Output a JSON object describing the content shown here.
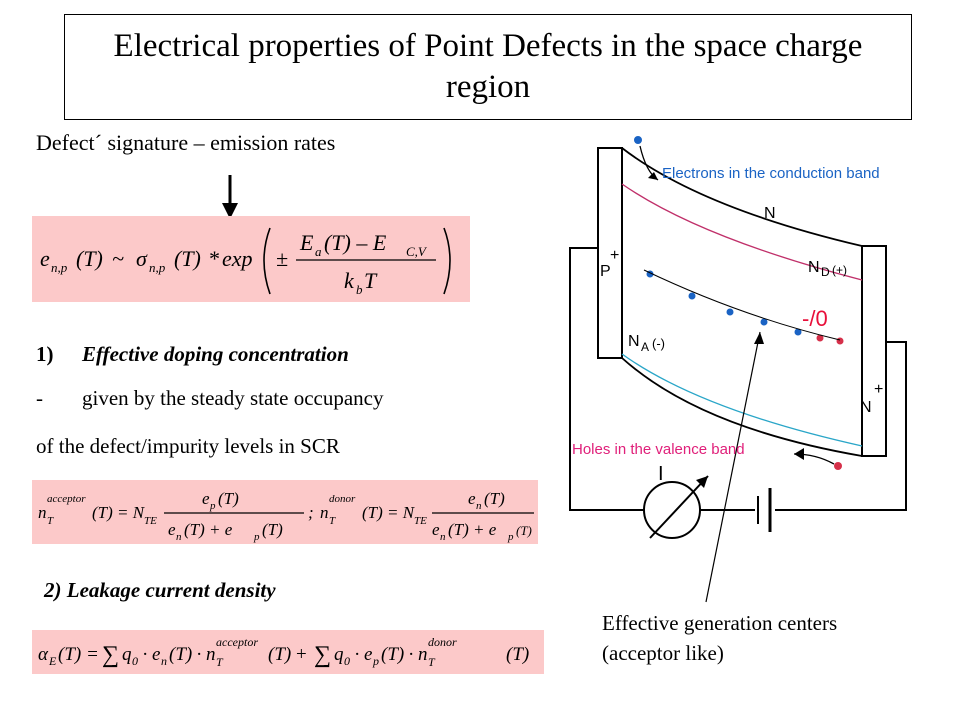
{
  "title": "Electrical properties of Point Defects in the space charge region",
  "subtitle": "Defect´ signature –  emission rates",
  "formula1": {
    "lhs": "e",
    "lhs_sub": "n,p",
    "lhs_arg": "(T)",
    "approx": "~",
    "sigma": "σ",
    "sigma_sub": "n,p",
    "sigma_arg": "(T)",
    "times": "*",
    "exp": "exp",
    "pm": "±",
    "num_E": "E",
    "num_E_sub": "a",
    "num_mid": "(T) – E",
    "num_sub2": "C,V",
    "den_k": "k",
    "den_sub": "b",
    "den_T": "T"
  },
  "item1": {
    "number": "1)",
    "heading": "Effective doping concentration",
    "dash": "-",
    "line1": "given by the steady state occupancy",
    "line2": "of the defect/impurity levels in SCR"
  },
  "formula2": {
    "n_acc": "n",
    "acc_sup": "acceptor",
    "T_sub": "T",
    "arg": "(T) = N",
    "nte_sub": "TE",
    "num_acc": "e",
    "num_acc_sub": "p",
    "num_arg": "(T)",
    "den": "e",
    "den_n_sub": "n",
    "den_mid": "(T) + e",
    "den_p_sub": "p",
    "den_end": "(T)",
    "sep": ";",
    "n_don": "n",
    "don_sup": "donor",
    "num_don": "e",
    "num_don_sub": "n"
  },
  "item2": {
    "heading": "2) Leakage current density"
  },
  "formula3": {
    "alpha": "α",
    "alpha_sub": "E",
    "arg": "(T) =",
    "sum": "∑",
    "q": "q",
    "q_sub": "0",
    "dot": "·",
    "e": "e",
    "e_n_sub": "n",
    "e_p_sub": "p",
    "targ": "(T)",
    "n": "n",
    "n_sub": "T",
    "acc_sup": "acceptor",
    "don_sup": "donor",
    "plus": "+"
  },
  "diagram": {
    "label_electrons": "Electrons in the conduction band",
    "label_N": "N",
    "label_P": "P",
    "label_plus_p": "+",
    "label_ND": "N",
    "label_ND_sub": "D",
    "label_ND_charge": "(+)",
    "label_NA": "N",
    "label_NA_sub": "A",
    "label_NA_charge": "(-)",
    "label_minus_zero": "-/0",
    "label_Nplus": "N",
    "label_plus_n": "+",
    "label_holes": "Holes in the valence band",
    "label_I": "I",
    "colors": {
      "electron_dot": "#1a63c4",
      "hole_dot": "#d6304a",
      "conduction_line": "#c0306a",
      "valence_line": "#2aa6c8",
      "electrons_text": "#1a63c4",
      "holes_text": "#e0207a",
      "minus_zero": "#e8103a"
    }
  },
  "caption": {
    "line1": "Effective generation centers",
    "line2": "(acceptor like)"
  }
}
